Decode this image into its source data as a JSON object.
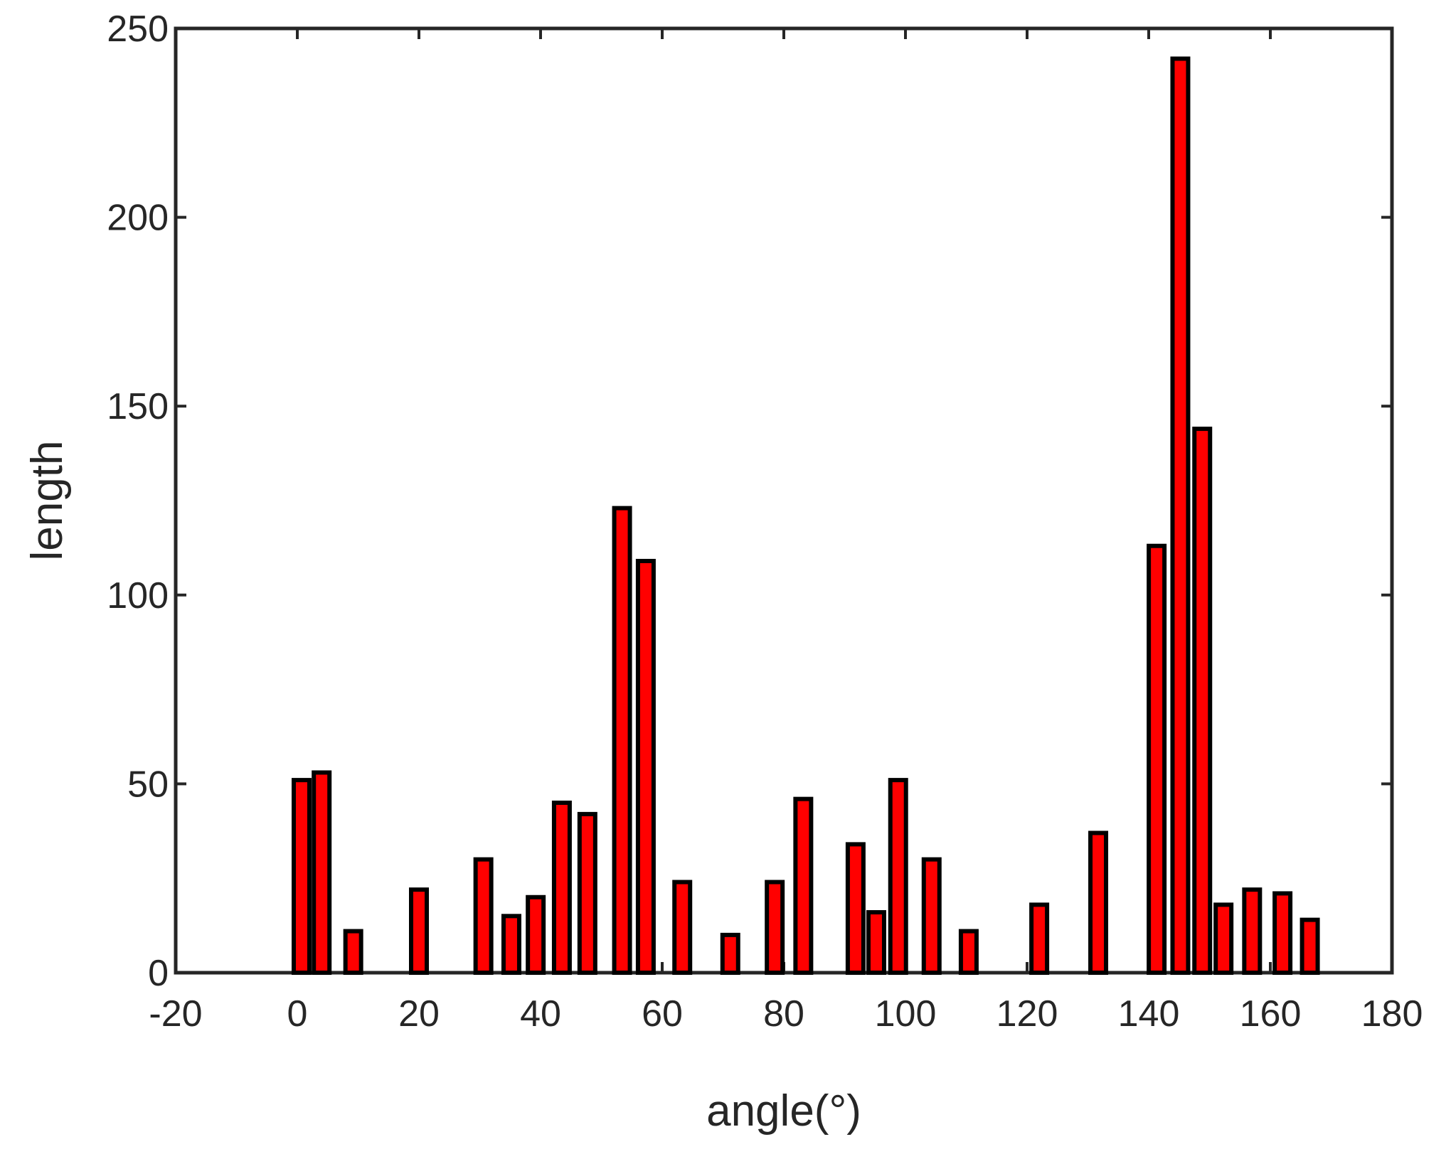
{
  "chart_data": {
    "type": "bar",
    "title": "",
    "xlabel": "angle(°)",
    "ylabel": "length",
    "xlim": [
      -20,
      180
    ],
    "ylim": [
      0,
      250
    ],
    "xticks": [
      -20,
      0,
      20,
      40,
      60,
      80,
      100,
      120,
      140,
      160,
      180
    ],
    "yticks": [
      0,
      50,
      100,
      150,
      200,
      250
    ],
    "grid": false,
    "legend": "none",
    "bar_fill": "#ff0000",
    "bar_stroke": "#000000",
    "axis_color": "#262626",
    "bars": [
      {
        "x": 0.7,
        "value": 51
      },
      {
        "x": 4.0,
        "value": 53
      },
      {
        "x": 9.2,
        "value": 11
      },
      {
        "x": 20.0,
        "value": 22
      },
      {
        "x": 30.6,
        "value": 30
      },
      {
        "x": 35.2,
        "value": 15
      },
      {
        "x": 39.2,
        "value": 20
      },
      {
        "x": 43.5,
        "value": 45
      },
      {
        "x": 47.7,
        "value": 42
      },
      {
        "x": 53.4,
        "value": 123
      },
      {
        "x": 57.3,
        "value": 109
      },
      {
        "x": 63.3,
        "value": 24
      },
      {
        "x": 71.2,
        "value": 10
      },
      {
        "x": 78.5,
        "value": 24
      },
      {
        "x": 83.2,
        "value": 46
      },
      {
        "x": 91.8,
        "value": 34
      },
      {
        "x": 95.2,
        "value": 16
      },
      {
        "x": 98.8,
        "value": 51
      },
      {
        "x": 104.3,
        "value": 30
      },
      {
        "x": 110.4,
        "value": 11
      },
      {
        "x": 122.0,
        "value": 18
      },
      {
        "x": 131.7,
        "value": 37
      },
      {
        "x": 141.3,
        "value": 113
      },
      {
        "x": 145.2,
        "value": 242
      },
      {
        "x": 148.8,
        "value": 144
      },
      {
        "x": 152.3,
        "value": 18
      },
      {
        "x": 157.0,
        "value": 22
      },
      {
        "x": 162.0,
        "value": 21
      },
      {
        "x": 166.5,
        "value": 14
      }
    ]
  }
}
